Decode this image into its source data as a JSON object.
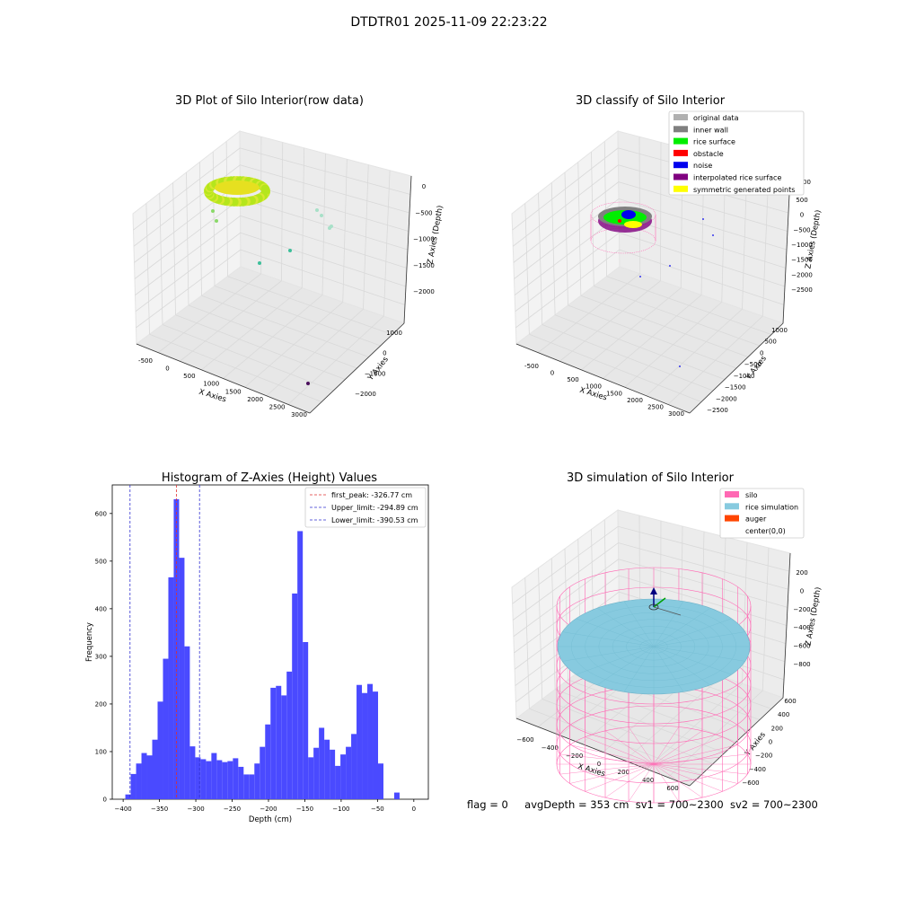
{
  "figure": {
    "suptitle": "DTDTR01 2025-11-09 22:23:22",
    "status": {
      "flag": "flag = 0",
      "avg_depth": "avgDepth = 353 cm",
      "sv1": "sv1 = 700~2300",
      "sv2": "sv2 = 700~2300"
    }
  },
  "colors": {
    "grid": "#d9d9d9",
    "pane": "#f3f3f3",
    "hist_bar": "#4a4aff",
    "first_peak_line": "#e03030",
    "limit_line": "#3030d0",
    "silo_wire": "#ff69b4",
    "rice_sim": "#87cadf",
    "auger": "#ff4500"
  },
  "chart_data": [
    {
      "type": "scatter",
      "title": "3D Plot of Silo Interior(row data)",
      "xlabel": "X Axies",
      "ylabel": "Y Axies",
      "zlabel": "Z Axies (Depth)",
      "x_ticks": [
        "-500",
        "0",
        "500",
        "1000",
        "1500",
        "2000",
        "2500",
        "3000"
      ],
      "y_ticks": [
        "1000",
        "0",
        "−1000",
        "−2000"
      ],
      "z_ticks": [
        "0",
        "−500",
        "−1000",
        "−1500",
        "−2000"
      ],
      "cluster": {
        "center": [
          0,
          0,
          -150
        ],
        "radius": 350,
        "color": "#b5e61d"
      },
      "points": [
        {
          "x": 1900,
          "y": 0,
          "z": -900,
          "color": "#a8e0c8"
        },
        {
          "x": 1950,
          "y": 100,
          "z": -950,
          "color": "#a8e0c8"
        },
        {
          "x": 2050,
          "y": -100,
          "z": -1150,
          "color": "#a8e0c8"
        },
        {
          "x": 2100,
          "y": -50,
          "z": -1150,
          "color": "#a8e0c8"
        },
        {
          "x": 1300,
          "y": -300,
          "z": -1500,
          "color": "#3cbf9a"
        },
        {
          "x": 1800,
          "y": -800,
          "z": -1600,
          "color": "#3cbf9a"
        },
        {
          "x": -100,
          "y": 200,
          "z": -600,
          "color": "#8ad968"
        },
        {
          "x": 50,
          "y": 100,
          "z": -700,
          "color": "#8ad968"
        },
        {
          "x": 2900,
          "y": -2200,
          "z": -2300,
          "color": "#4b0f5c"
        }
      ]
    },
    {
      "type": "scatter",
      "title": "3D classify of Silo Interior",
      "xlabel": "X Axies",
      "ylabel": "Y Axies",
      "zlabel": "Z Axies (Depth)",
      "x_ticks": [
        "-500",
        "0",
        "500",
        "1000",
        "1500",
        "2000",
        "2500",
        "3000"
      ],
      "y_ticks": [
        "1000",
        "500",
        "0",
        "−500",
        "−1000",
        "−1500",
        "−2000",
        "−2500"
      ],
      "z_ticks": [
        "500",
        "0",
        "−500",
        "−1000",
        "−1500",
        "−2000",
        "−2500"
      ],
      "legend": [
        {
          "label": "original data",
          "color": "#b0b0b0"
        },
        {
          "label": "inner wall",
          "color": "#808080"
        },
        {
          "label": "rice surface",
          "color": "#00ee00"
        },
        {
          "label": "obstacle",
          "color": "#ff0000"
        },
        {
          "label": "noise",
          "color": "#0000ee"
        },
        {
          "label": "interpolated rice surface",
          "color": "#800080"
        },
        {
          "label": "symmetric generated points",
          "color": "#ffff00"
        }
      ],
      "legend_extra_tick": "1000",
      "legend_location": "upper right"
    },
    {
      "type": "bar",
      "title": "Histogram of Z-Axies (Height) Values",
      "xlabel": "Depth (cm)",
      "ylabel": "Frequency",
      "xlim": [
        -415,
        20
      ],
      "ylim": [
        0,
        660
      ],
      "x_ticks": [
        -400,
        -350,
        -300,
        -250,
        -200,
        -150,
        -100,
        -50,
        0
      ],
      "y_ticks": [
        0,
        100,
        200,
        300,
        400,
        500,
        600
      ],
      "bin_width": 7.4,
      "bin_starts": [
        -397,
        -389.6,
        -382.2,
        -374.8,
        -367.4,
        -360,
        -352.6,
        -345.2,
        -337.8,
        -330.4,
        -323,
        -315.6,
        -308.2,
        -300.8,
        -293.4,
        -286,
        -278.6,
        -271.2,
        -263.8,
        -256.4,
        -249,
        -241.6,
        -234.2,
        -226.8,
        -219.4,
        -212,
        -204.6,
        -197.2,
        -189.8,
        -182.4,
        -175,
        -167.6,
        -160.2,
        -152.8,
        -145.4,
        -138,
        -130.6,
        -123.2,
        -115.8,
        -108.4,
        -101,
        -93.6,
        -86.2,
        -78.8,
        -71.4,
        -64,
        -56.6,
        -49.2,
        -41.8,
        -34.4,
        -27,
        -19.6,
        -12.2,
        -4.8
      ],
      "values": [
        10,
        53,
        75,
        97,
        92,
        125,
        205,
        295,
        466,
        630,
        507,
        321,
        111,
        88,
        84,
        80,
        97,
        82,
        78,
        80,
        86,
        68,
        52,
        52,
        75,
        110,
        157,
        234,
        238,
        218,
        268,
        432,
        563,
        330,
        88,
        108,
        150,
        125,
        104,
        70,
        94,
        110,
        137,
        240,
        223,
        242,
        226,
        75,
        0,
        0,
        14,
        0,
        0,
        0
      ],
      "vlines": [
        {
          "label": "first_peak: -326.77 cm",
          "x": -326.77,
          "color": "#e03030"
        },
        {
          "label": "Upper_limit: -294.89 cm",
          "x": -294.89,
          "color": "#3030d0"
        },
        {
          "label": "Lower_limit: -390.53 cm",
          "x": -390.53,
          "color": "#3030d0"
        }
      ],
      "legend_location": "upper right"
    },
    {
      "type": "area",
      "title": "3D simulation of Silo Interior",
      "xlabel": "X Axies",
      "ylabel": "Y Axies",
      "zlabel": "Z Axies (Depth)",
      "x_ticks": [
        "−600",
        "−400",
        "−200",
        "0",
        "200",
        "400",
        "600"
      ],
      "y_ticks": [
        "600",
        "400",
        "200",
        "0",
        "−200",
        "−400",
        "−600"
      ],
      "z_ticks": [
        "200",
        "0",
        "−200",
        "−400",
        "−600",
        "−800"
      ],
      "legend": [
        {
          "label": "silo",
          "color": "#ff69b4"
        },
        {
          "label": "rice simulation",
          "color": "#87cadf"
        },
        {
          "label": "auger",
          "color": "#ff4500"
        },
        {
          "label": "center(0,0)",
          "color": ""
        }
      ],
      "silo": {
        "radius": 650,
        "z_top": 300,
        "z_bottom": -950
      },
      "rice_surface_depth": -353,
      "legend_location": "upper right"
    }
  ]
}
